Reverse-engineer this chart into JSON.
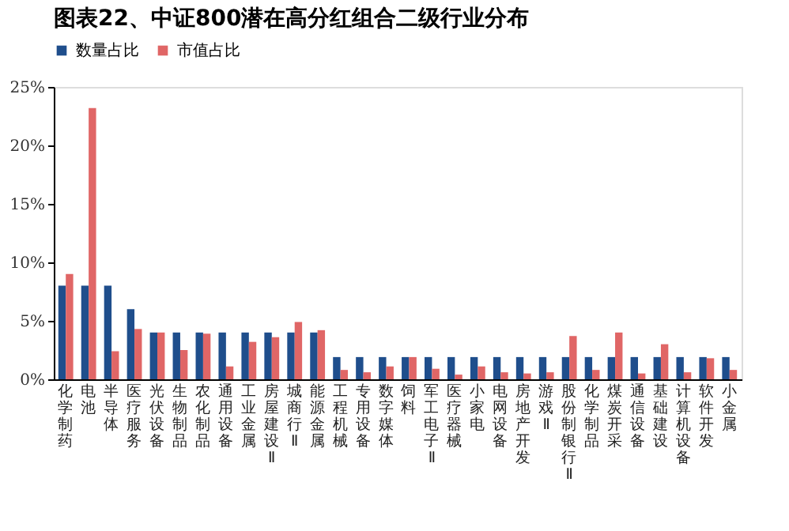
{
  "chart_data": {
    "type": "bar",
    "title": "图表22、中证800潜在高分红组合二级行业分布",
    "categories": [
      "化学制药",
      "电池",
      "半导体",
      "医疗服务",
      "光伏设备",
      "生物制品",
      "农化制品",
      "通用设备",
      "工业金属",
      "房屋建设Ⅱ",
      "城商行Ⅱ",
      "能源金属",
      "工程机械",
      "专用设备",
      "数字媒体",
      "饲料",
      "军工电子Ⅱ",
      "医疗器械",
      "小家电",
      "电网设备",
      "房地产开发",
      "游戏Ⅱ",
      "股份制银行Ⅱ",
      "化学制品",
      "煤炭开采",
      "通信设备",
      "基础建设",
      "计算机设备",
      "软件开发",
      "小金属"
    ],
    "series": [
      {
        "name": "数量占比",
        "color": "#1f4e8c",
        "values": [
          8,
          8,
          8,
          6,
          4,
          4,
          4,
          4,
          4,
          4,
          4,
          4,
          1.9,
          1.9,
          1.9,
          1.9,
          1.9,
          1.9,
          1.9,
          1.9,
          1.9,
          1.9,
          1.9,
          1.9,
          1.9,
          1.9,
          1.9,
          1.9,
          1.9,
          1.9
        ]
      },
      {
        "name": "市值占比",
        "color": "#e06666",
        "values": [
          9,
          23.2,
          2.4,
          4.3,
          4,
          2.5,
          3.9,
          1.1,
          3.2,
          3.6,
          4.9,
          4.2,
          0.8,
          0.6,
          1.1,
          1.9,
          0.9,
          0.4,
          1.1,
          0.6,
          0.5,
          0.6,
          3.7,
          0.8,
          4,
          0.5,
          3,
          0.6,
          1.8,
          0.8
        ]
      }
    ],
    "ylim": [
      0,
      25
    ],
    "yticks": [
      {
        "value": 0,
        "label": "0%"
      },
      {
        "value": 5,
        "label": "5%"
      },
      {
        "value": 10,
        "label": "10%"
      },
      {
        "value": 15,
        "label": "15%"
      },
      {
        "value": 20,
        "label": "20%"
      },
      {
        "value": 25,
        "label": "25%"
      }
    ],
    "grid": false,
    "legend": "top"
  }
}
